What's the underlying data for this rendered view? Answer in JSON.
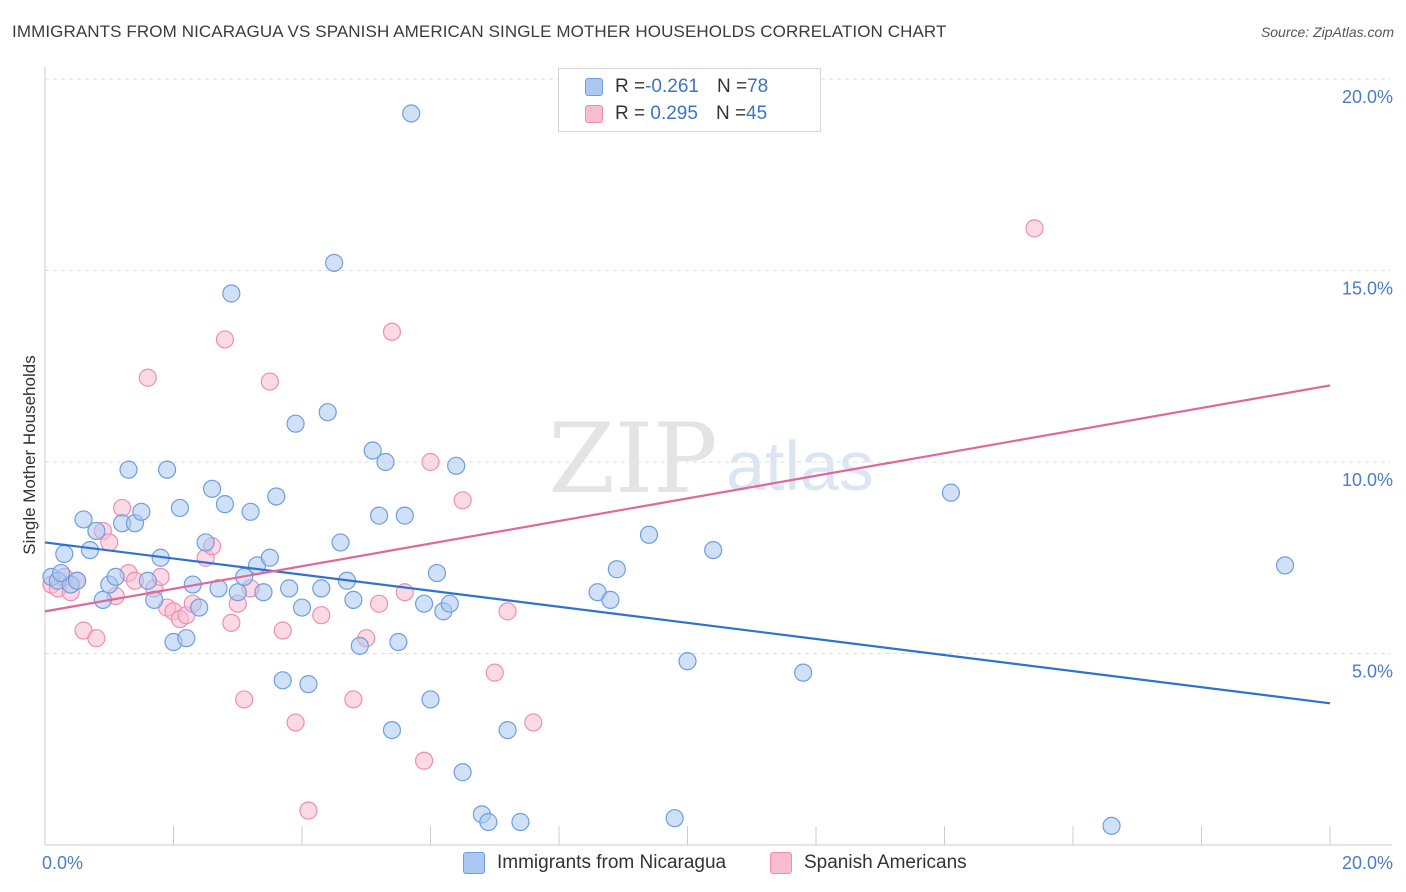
{
  "header": {
    "title": "IMMIGRANTS FROM NICARAGUA VS SPANISH AMERICAN SINGLE MOTHER HOUSEHOLDS CORRELATION CHART",
    "source": "Source: ZipAtlas.com"
  },
  "watermark": {
    "zip": "ZIP",
    "atlas": "atlas"
  },
  "legend": {
    "rows": [
      {
        "r_label": "R = ",
        "r_value": "-0.261",
        "n_label": "N = ",
        "n_value": "78"
      },
      {
        "r_label": "R = ",
        "r_value": " 0.295",
        "n_label": "N = ",
        "n_value": "45"
      }
    ],
    "bottom": [
      "Immigrants from Nicaragua",
      "Spanish Americans"
    ]
  },
  "colors": {
    "blue_fill": "#aac8f0",
    "blue_stroke": "#6f9ee0",
    "blue_line": "#2f72cf",
    "pink_fill": "#f7bcd0",
    "pink_stroke": "#ee8fb0",
    "pink_line": "#e0679a",
    "grid": "#dedede",
    "axis": "#cccccc"
  },
  "chart_data": {
    "type": "scatter",
    "title": "IMMIGRANTS FROM NICARAGUA VS SPANISH AMERICAN SINGLE MOTHER HOUSEHOLDS CORRELATION CHART",
    "xlabel": "",
    "ylabel": "Single Mother Households",
    "xlim": [
      0,
      20
    ],
    "ylim": [
      0,
      20
    ],
    "x_tick_labels": [
      "0.0%",
      "20.0%"
    ],
    "y_tick_labels": [
      "5.0%",
      "10.0%",
      "15.0%",
      "20.0%"
    ],
    "y_ticks": [
      5,
      10,
      15,
      20
    ],
    "series": [
      {
        "name": "Immigrants from Nicaragua",
        "color": "blue",
        "r": -0.261,
        "n": 78,
        "trend": {
          "x": [
            0,
            20
          ],
          "y": [
            7.9,
            3.7
          ]
        },
        "points": [
          [
            0.1,
            7.0
          ],
          [
            0.2,
            6.9
          ],
          [
            0.3,
            7.6
          ],
          [
            0.4,
            6.8
          ],
          [
            0.5,
            6.9
          ],
          [
            0.6,
            8.5
          ],
          [
            0.7,
            7.7
          ],
          [
            0.8,
            8.2
          ],
          [
            0.9,
            6.4
          ],
          [
            1.0,
            6.8
          ],
          [
            1.1,
            7.0
          ],
          [
            1.2,
            8.4
          ],
          [
            1.3,
            9.8
          ],
          [
            1.4,
            8.4
          ],
          [
            1.5,
            8.7
          ],
          [
            1.6,
            6.9
          ],
          [
            1.7,
            6.4
          ],
          [
            1.8,
            7.5
          ],
          [
            1.9,
            9.8
          ],
          [
            2.0,
            5.3
          ],
          [
            2.1,
            8.8
          ],
          [
            2.2,
            5.4
          ],
          [
            2.3,
            6.8
          ],
          [
            2.4,
            6.2
          ],
          [
            2.5,
            7.9
          ],
          [
            2.6,
            9.3
          ],
          [
            2.7,
            6.7
          ],
          [
            2.8,
            8.9
          ],
          [
            2.9,
            14.4
          ],
          [
            3.0,
            6.6
          ],
          [
            3.1,
            7.0
          ],
          [
            3.2,
            8.7
          ],
          [
            3.3,
            7.3
          ],
          [
            3.4,
            6.6
          ],
          [
            3.5,
            7.5
          ],
          [
            3.6,
            9.1
          ],
          [
            3.7,
            4.3
          ],
          [
            3.8,
            6.7
          ],
          [
            3.9,
            11.0
          ],
          [
            4.0,
            6.2
          ],
          [
            4.1,
            4.2
          ],
          [
            4.3,
            6.7
          ],
          [
            4.4,
            11.3
          ],
          [
            4.5,
            15.2
          ],
          [
            4.6,
            7.9
          ],
          [
            4.7,
            6.9
          ],
          [
            4.8,
            6.4
          ],
          [
            4.9,
            5.2
          ],
          [
            5.1,
            10.3
          ],
          [
            5.2,
            8.6
          ],
          [
            5.3,
            10.0
          ],
          [
            5.4,
            3.0
          ],
          [
            5.5,
            5.3
          ],
          [
            5.6,
            8.6
          ],
          [
            5.7,
            19.1
          ],
          [
            5.9,
            6.3
          ],
          [
            6.0,
            3.8
          ],
          [
            6.1,
            7.1
          ],
          [
            6.2,
            6.1
          ],
          [
            6.3,
            6.3
          ],
          [
            6.4,
            9.9
          ],
          [
            6.5,
            1.9
          ],
          [
            6.8,
            0.8
          ],
          [
            6.9,
            0.6
          ],
          [
            7.2,
            3.0
          ],
          [
            7.4,
            0.6
          ],
          [
            8.6,
            6.6
          ],
          [
            8.8,
            6.4
          ],
          [
            8.9,
            7.2
          ],
          [
            9.4,
            8.1
          ],
          [
            9.8,
            0.7
          ],
          [
            10.0,
            4.8
          ],
          [
            10.4,
            7.7
          ],
          [
            11.8,
            4.5
          ],
          [
            14.1,
            9.2
          ],
          [
            16.6,
            0.5
          ],
          [
            19.3,
            7.3
          ],
          [
            0.25,
            7.1
          ]
        ]
      },
      {
        "name": "Spanish Americans",
        "color": "pink",
        "r": 0.295,
        "n": 45,
        "trend": {
          "x": [
            0,
            20
          ],
          "y": [
            6.1,
            12.0
          ]
        },
        "points": [
          [
            0.1,
            6.8
          ],
          [
            0.2,
            6.7
          ],
          [
            0.3,
            7.0
          ],
          [
            0.4,
            6.6
          ],
          [
            0.5,
            6.9
          ],
          [
            0.6,
            5.6
          ],
          [
            0.8,
            5.4
          ],
          [
            0.9,
            8.2
          ],
          [
            1.0,
            7.9
          ],
          [
            1.1,
            6.5
          ],
          [
            1.2,
            8.8
          ],
          [
            1.3,
            7.1
          ],
          [
            1.4,
            6.9
          ],
          [
            1.6,
            12.2
          ],
          [
            1.7,
            6.7
          ],
          [
            1.8,
            7.0
          ],
          [
            1.9,
            6.2
          ],
          [
            2.0,
            6.1
          ],
          [
            2.1,
            5.9
          ],
          [
            2.2,
            6.0
          ],
          [
            2.3,
            6.3
          ],
          [
            2.5,
            7.5
          ],
          [
            2.6,
            7.8
          ],
          [
            2.8,
            13.2
          ],
          [
            2.9,
            5.8
          ],
          [
            3.0,
            6.3
          ],
          [
            3.1,
            3.8
          ],
          [
            3.2,
            6.7
          ],
          [
            3.5,
            12.1
          ],
          [
            3.7,
            5.6
          ],
          [
            3.9,
            3.2
          ],
          [
            4.1,
            0.9
          ],
          [
            4.3,
            6.0
          ],
          [
            4.8,
            3.8
          ],
          [
            5.0,
            5.4
          ],
          [
            5.2,
            6.3
          ],
          [
            5.4,
            13.4
          ],
          [
            5.6,
            6.6
          ],
          [
            5.9,
            2.2
          ],
          [
            6.0,
            10.0
          ],
          [
            6.5,
            9.0
          ],
          [
            7.0,
            4.5
          ],
          [
            7.2,
            6.1
          ],
          [
            7.6,
            3.2
          ],
          [
            15.4,
            16.1
          ]
        ]
      }
    ]
  }
}
